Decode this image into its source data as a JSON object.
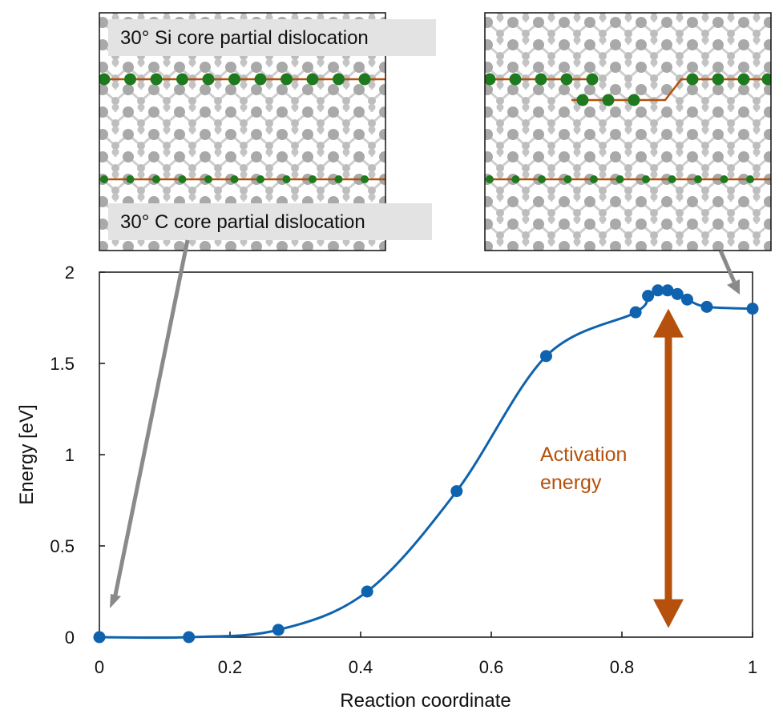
{
  "chart_data": {
    "type": "line",
    "xlabel": "Reaction coordinate",
    "ylabel": "Energy [eV]",
    "xlim": [
      0,
      1
    ],
    "ylim": [
      0,
      2
    ],
    "xticks": [
      "0",
      "0.2",
      "0.4",
      "0.6",
      "0.8",
      "1"
    ],
    "yticks": [
      "0",
      "0.5",
      "1",
      "1.5",
      "2"
    ],
    "grid": false,
    "series": [
      {
        "marker": "circle",
        "color": "#0f62ad",
        "x": [
          0.0,
          0.137,
          0.274,
          0.41,
          0.547,
          0.684,
          0.821,
          0.84,
          0.855,
          0.87,
          0.885,
          0.9,
          0.93,
          1.0
        ],
        "y": [
          0.0,
          0.0,
          0.04,
          0.25,
          0.8,
          1.54,
          1.78,
          1.87,
          1.9,
          1.9,
          1.88,
          1.85,
          1.81,
          1.8
        ]
      }
    ],
    "annotations": {
      "si_core_label": "30° Si core partial dislocation",
      "c_core_label": "30° C core partial dislocation",
      "activation_label_line1": "Activation",
      "activation_label_line2": "energy",
      "activation_color": "#b5510c",
      "line_color": "#b5510c",
      "atom_green": "#1f7a1f",
      "atom_gray": "#a6a6a6"
    }
  }
}
